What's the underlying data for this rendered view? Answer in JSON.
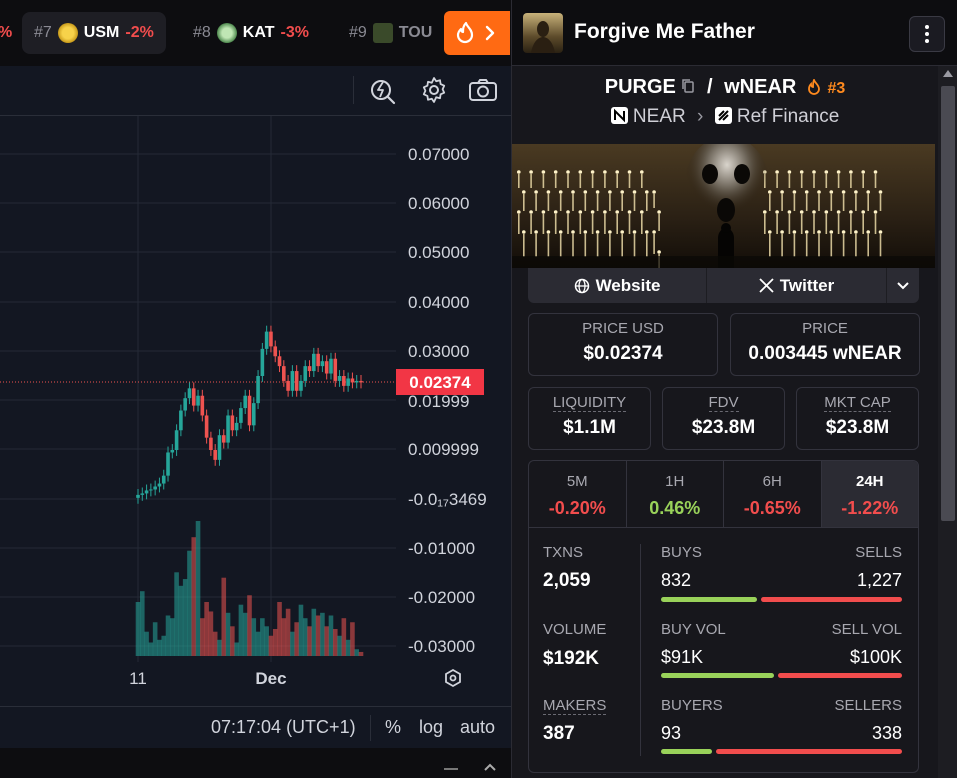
{
  "trending": [
    {
      "pct_partial": "%"
    },
    {
      "rank": "#7",
      "symbol": "USM",
      "change": "-2%"
    },
    {
      "rank": "#8",
      "symbol": "KAT",
      "change": "-3%"
    },
    {
      "rank": "#9",
      "symbol": "TOU"
    }
  ],
  "chart": {
    "y_ticks": [
      "0.07000",
      "0.06000",
      "0.05000",
      "0.04000",
      "0.03000",
      "0.01999",
      "0.009999",
      "-0.0₁₇3469",
      "-0.01000",
      "-0.02000",
      "-0.03000"
    ],
    "current_price": "0.02374",
    "x_ticks": [
      "11",
      "Dec"
    ],
    "time": "07:17:04 (UTC+1)",
    "toggle_percent": "%",
    "toggle_log": "log",
    "toggle_auto": "auto"
  },
  "chart_data": {
    "type": "candlestick",
    "y_ticks": [
      0.07,
      0.06,
      0.05,
      0.04,
      0.03,
      0.01999,
      0.009999,
      -0.01,
      -0.02,
      -0.03
    ],
    "current_price": 0.02374,
    "candles_close": [
      0.0009,
      0.0012,
      0.0018,
      0.002,
      0.0026,
      0.0032,
      0.0048,
      0.0095,
      0.01,
      0.014,
      0.018,
      0.0205,
      0.0225,
      0.019,
      0.021,
      0.017,
      0.0125,
      0.01,
      0.008,
      0.013,
      0.0115,
      0.017,
      0.014,
      0.0155,
      0.0185,
      0.021,
      0.015,
      0.0195,
      0.025,
      0.0305,
      0.034,
      0.031,
      0.029,
      0.027,
      0.024,
      0.022,
      0.026,
      0.022,
      0.024,
      0.027,
      0.026,
      0.0295,
      0.027,
      0.028,
      0.0255,
      0.0285,
      0.024,
      0.025,
      0.023,
      0.0245,
      0.0237,
      0.024,
      0.0237
    ],
    "volumes_rel": [
      0.4,
      0.48,
      0.18,
      0.1,
      0.25,
      0.12,
      0.15,
      0.3,
      0.28,
      0.62,
      0.52,
      0.57,
      0.78,
      0.88,
      1.0,
      0.28,
      0.4,
      0.33,
      0.18,
      0.12,
      0.58,
      0.32,
      0.22,
      0.1,
      0.38,
      0.32,
      0.45,
      0.28,
      0.18,
      0.28,
      0.22,
      0.15,
      0.2,
      0.4,
      0.28,
      0.35,
      0.18,
      0.25,
      0.38,
      0.28,
      0.22,
      0.35,
      0.3,
      0.32,
      0.22,
      0.3,
      0.2,
      0.15,
      0.28,
      0.12,
      0.25,
      0.05,
      0.03
    ]
  },
  "panel": {
    "token_name": "Forgive Me Father",
    "pair_base": "PURGE",
    "pair_sep": "/",
    "pair_quote": "wNEAR",
    "pair_rank": "#3",
    "chain": "NEAR",
    "dex": "Ref Finance",
    "website_label": "Website",
    "twitter_label": "Twitter",
    "price_usd_label": "PRICE USD",
    "price_usd": "$0.02374",
    "price_label": "PRICE",
    "price_native": "0.003445 wNEAR",
    "liquidity_label": "LIQUIDITY",
    "liquidity": "$1.1M",
    "fdv_label": "FDV",
    "fdv": "$23.8M",
    "mktcap_label": "MKT CAP",
    "mktcap": "$23.8M",
    "changes": [
      {
        "period": "5M",
        "value": "-0.20%"
      },
      {
        "period": "1H",
        "value": "0.46%"
      },
      {
        "period": "6H",
        "value": "-0.65%"
      },
      {
        "period": "24H",
        "value": "-1.22%"
      }
    ],
    "txns_label": "TXNS",
    "txns": "2,059",
    "buys_label": "BUYS",
    "buys": "832",
    "sells_label": "SELLS",
    "sells": "1,227",
    "volume_label": "VOLUME",
    "volume": "$192K",
    "buy_vol_label": "BUY VOL",
    "buy_vol": "$91K",
    "sell_vol_label": "SELL VOL",
    "sell_vol": "$100K",
    "makers_label": "MAKERS",
    "makers": "387",
    "buyers_label": "BUYERS",
    "buyers": "93",
    "sellers_label": "SELLERS",
    "sellers": "338",
    "buys_share": 0.404,
    "buy_vol_share": 0.476,
    "buyers_share": 0.216
  },
  "colors": {
    "up": "#26a69a",
    "down": "#ef5350",
    "accent": "#ff6a13",
    "green": "#99d25a",
    "red": "#f24d4d"
  }
}
